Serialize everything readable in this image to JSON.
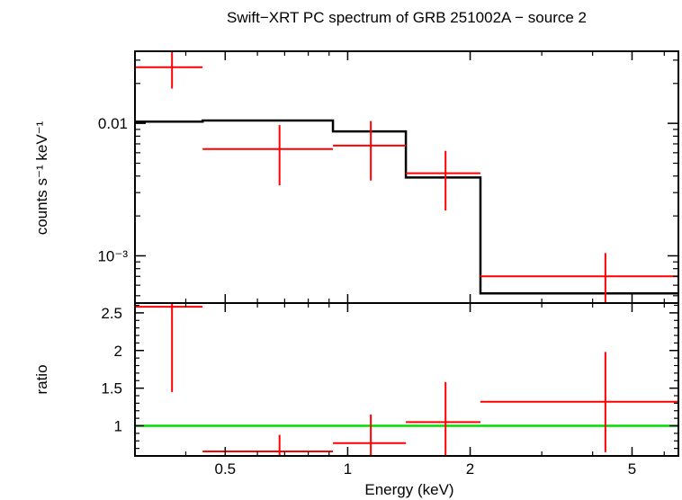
{
  "chart_data": [
    {
      "type": "scatter",
      "title": "Swift−XRT PC spectrum of GRB 251002A − source 2",
      "xlabel": "",
      "ylabel": "counts s⁻¹ keV⁻¹",
      "x_scale": "log",
      "y_scale": "log",
      "xlim": [
        0.3,
        6.5
      ],
      "ylim": [
        0.00044,
        0.035
      ],
      "y_ticks": [
        {
          "value": 0.01,
          "label": "0.01"
        },
        {
          "value": 0.001,
          "label": "10⁻³"
        }
      ],
      "series": [
        {
          "kind": "data",
          "color": "#ff0000",
          "points": [
            {
              "x_lo": 0.3,
              "x_hi": 0.44,
              "x": 0.37,
              "y": 0.0265,
              "y_lo": 0.0183,
              "y_hi": 0.035
            },
            {
              "x_lo": 0.44,
              "x_hi": 0.92,
              "x": 0.68,
              "y": 0.0064,
              "y_lo": 0.0034,
              "y_hi": 0.0097
            },
            {
              "x_lo": 0.92,
              "x_hi": 1.39,
              "x": 1.14,
              "y": 0.0068,
              "y_lo": 0.0037,
              "y_hi": 0.0104
            },
            {
              "x_lo": 1.39,
              "x_hi": 2.12,
              "x": 1.74,
              "y": 0.0042,
              "y_lo": 0.0022,
              "y_hi": 0.0062
            },
            {
              "x_lo": 2.12,
              "x_hi": 6.5,
              "x": 4.3,
              "y": 0.0007,
              "y_lo": 0.00044,
              "y_hi": 0.00105
            }
          ]
        },
        {
          "kind": "model",
          "color": "#000000",
          "steps": [
            {
              "x_lo": 0.3,
              "x_hi": 0.44,
              "y": 0.0103
            },
            {
              "x_lo": 0.44,
              "x_hi": 0.92,
              "y": 0.0105
            },
            {
              "x_lo": 0.92,
              "x_hi": 1.39,
              "y": 0.0087
            },
            {
              "x_lo": 1.39,
              "x_hi": 2.12,
              "y": 0.0039
            },
            {
              "x_lo": 2.12,
              "x_hi": 6.5,
              "y": 0.00052
            }
          ]
        }
      ]
    },
    {
      "type": "scatter",
      "title": "",
      "xlabel": "Energy (keV)",
      "ylabel": "ratio",
      "x_scale": "log",
      "y_scale": "linear",
      "xlim": [
        0.3,
        6.5
      ],
      "ylim": [
        0.6,
        2.63
      ],
      "x_ticks": [
        {
          "value": 0.5,
          "label": "0.5"
        },
        {
          "value": 1,
          "label": "1"
        },
        {
          "value": 2,
          "label": "2"
        },
        {
          "value": 5,
          "label": "5"
        }
      ],
      "y_ticks": [
        {
          "value": 1,
          "label": "1"
        },
        {
          "value": 1.5,
          "label": "1.5"
        },
        {
          "value": 2,
          "label": "2"
        },
        {
          "value": 2.5,
          "label": "2.5"
        }
      ],
      "reference_line": {
        "y": 1,
        "color": "#00dd00"
      },
      "series": [
        {
          "kind": "ratio",
          "color": "#ff0000",
          "points": [
            {
              "x_lo": 0.3,
              "x_hi": 0.44,
              "x": 0.37,
              "y": 2.58,
              "y_lo": 1.45,
              "y_hi": 2.63
            },
            {
              "x_lo": 0.44,
              "x_hi": 0.92,
              "x": 0.68,
              "y": 0.6,
              "y_lo": 0.6,
              "y_hi": 0.88
            },
            {
              "x_lo": 0.92,
              "x_hi": 1.39,
              "x": 1.14,
              "y": 0.77,
              "y_lo": 0.6,
              "y_hi": 1.15
            },
            {
              "x_lo": 1.39,
              "x_hi": 2.12,
              "x": 1.74,
              "y": 1.05,
              "y_lo": 0.6,
              "y_hi": 1.58
            },
            {
              "x_lo": 2.12,
              "x_hi": 6.5,
              "x": 4.3,
              "y": 1.32,
              "y_lo": 0.65,
              "y_hi": 1.98
            }
          ]
        }
      ]
    }
  ]
}
